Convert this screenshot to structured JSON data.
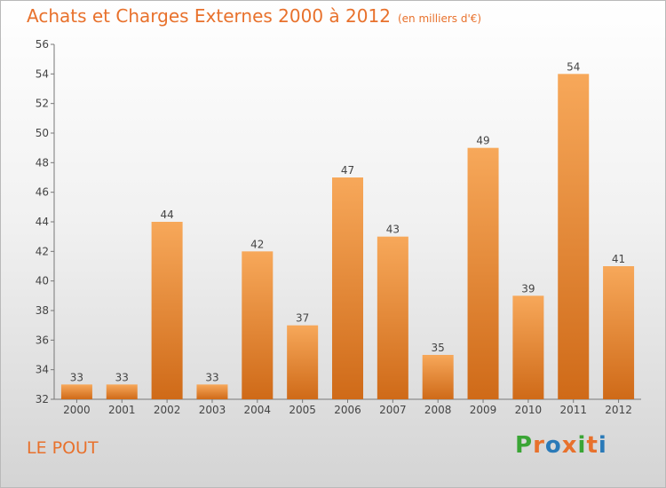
{
  "header": {
    "title": "Achats et Charges Externes 2000 à 2012",
    "unit": "(en milliers d'€)"
  },
  "footer": {
    "place": "LE POUT",
    "logo_letters": [
      "P",
      "r",
      "o",
      "x",
      "i",
      "t",
      "i"
    ],
    "logo_colors": [
      "#3aa535",
      "#e8712c",
      "#2a7ab8",
      "#e8712c",
      "#3aa535",
      "#e8712c",
      "#2a7ab8"
    ]
  },
  "colors": {
    "bar_top": "#f7a85a",
    "bar_bottom": "#cf6a18",
    "axis": "#777777",
    "label": "#444444"
  },
  "chart_data": {
    "type": "bar",
    "title": "Achats et Charges Externes 2000 à 2012",
    "subtitle": "(en milliers d'€)",
    "categories": [
      "2000",
      "2001",
      "2002",
      "2003",
      "2004",
      "2005",
      "2006",
      "2007",
      "2008",
      "2009",
      "2010",
      "2011",
      "2012"
    ],
    "values": [
      33,
      33,
      44,
      33,
      42,
      37,
      47,
      43,
      35,
      49,
      39,
      54,
      41
    ],
    "ylim": [
      32,
      56
    ],
    "yticks": [
      32,
      34,
      36,
      38,
      40,
      42,
      44,
      46,
      48,
      50,
      52,
      54,
      56
    ],
    "grid": false,
    "legend": "none"
  }
}
